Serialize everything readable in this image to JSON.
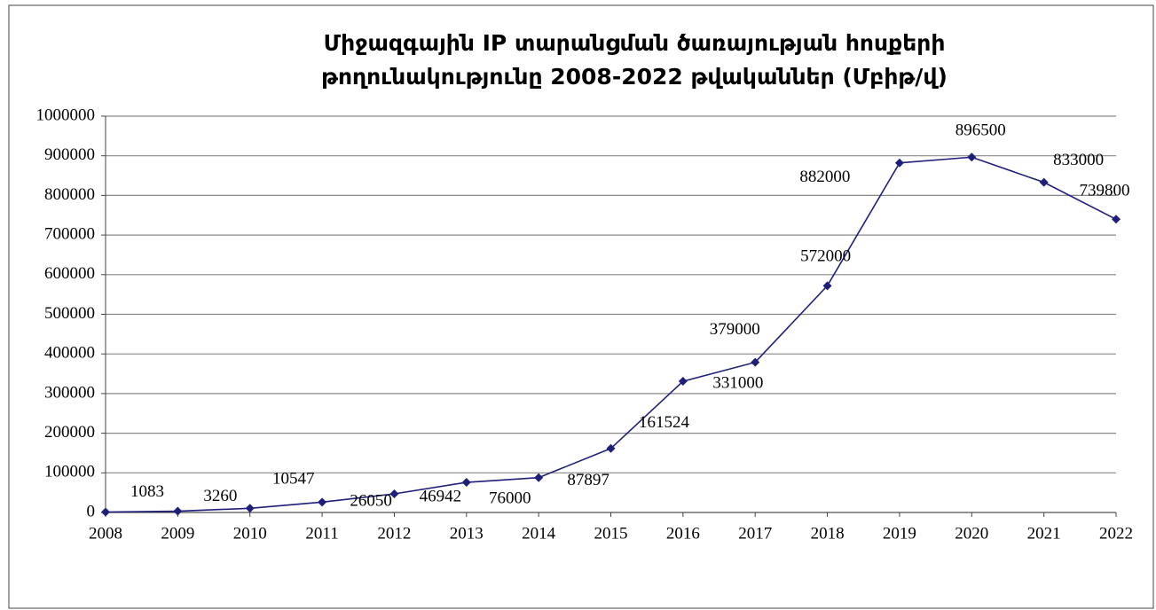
{
  "chart_data": {
    "type": "line",
    "title": [
      "Միջազգային IP տարանցման ծառայության հոսքերի",
      "թողունակությունը 2008-2022 թվականներ (Մբիթ/վ)"
    ],
    "categories": [
      "2008",
      "2009",
      "2010",
      "2011",
      "2012",
      "2013",
      "2014",
      "2015",
      "2016",
      "2017",
      "2018",
      "2019",
      "2020",
      "2021",
      "2022"
    ],
    "series": [
      {
        "color": "#1f1f7a",
        "values": [
          1083,
          3260,
          10547,
          26050,
          46942,
          76000,
          87897,
          161524,
          331000,
          379000,
          572000,
          882000,
          896500,
          833000,
          739800
        ]
      }
    ],
    "ylim": [
      0,
      1000000
    ],
    "yticks": [
      0,
      100000,
      200000,
      300000,
      400000,
      500000,
      600000,
      700000,
      800000,
      900000,
      1000000
    ],
    "grid": true
  }
}
